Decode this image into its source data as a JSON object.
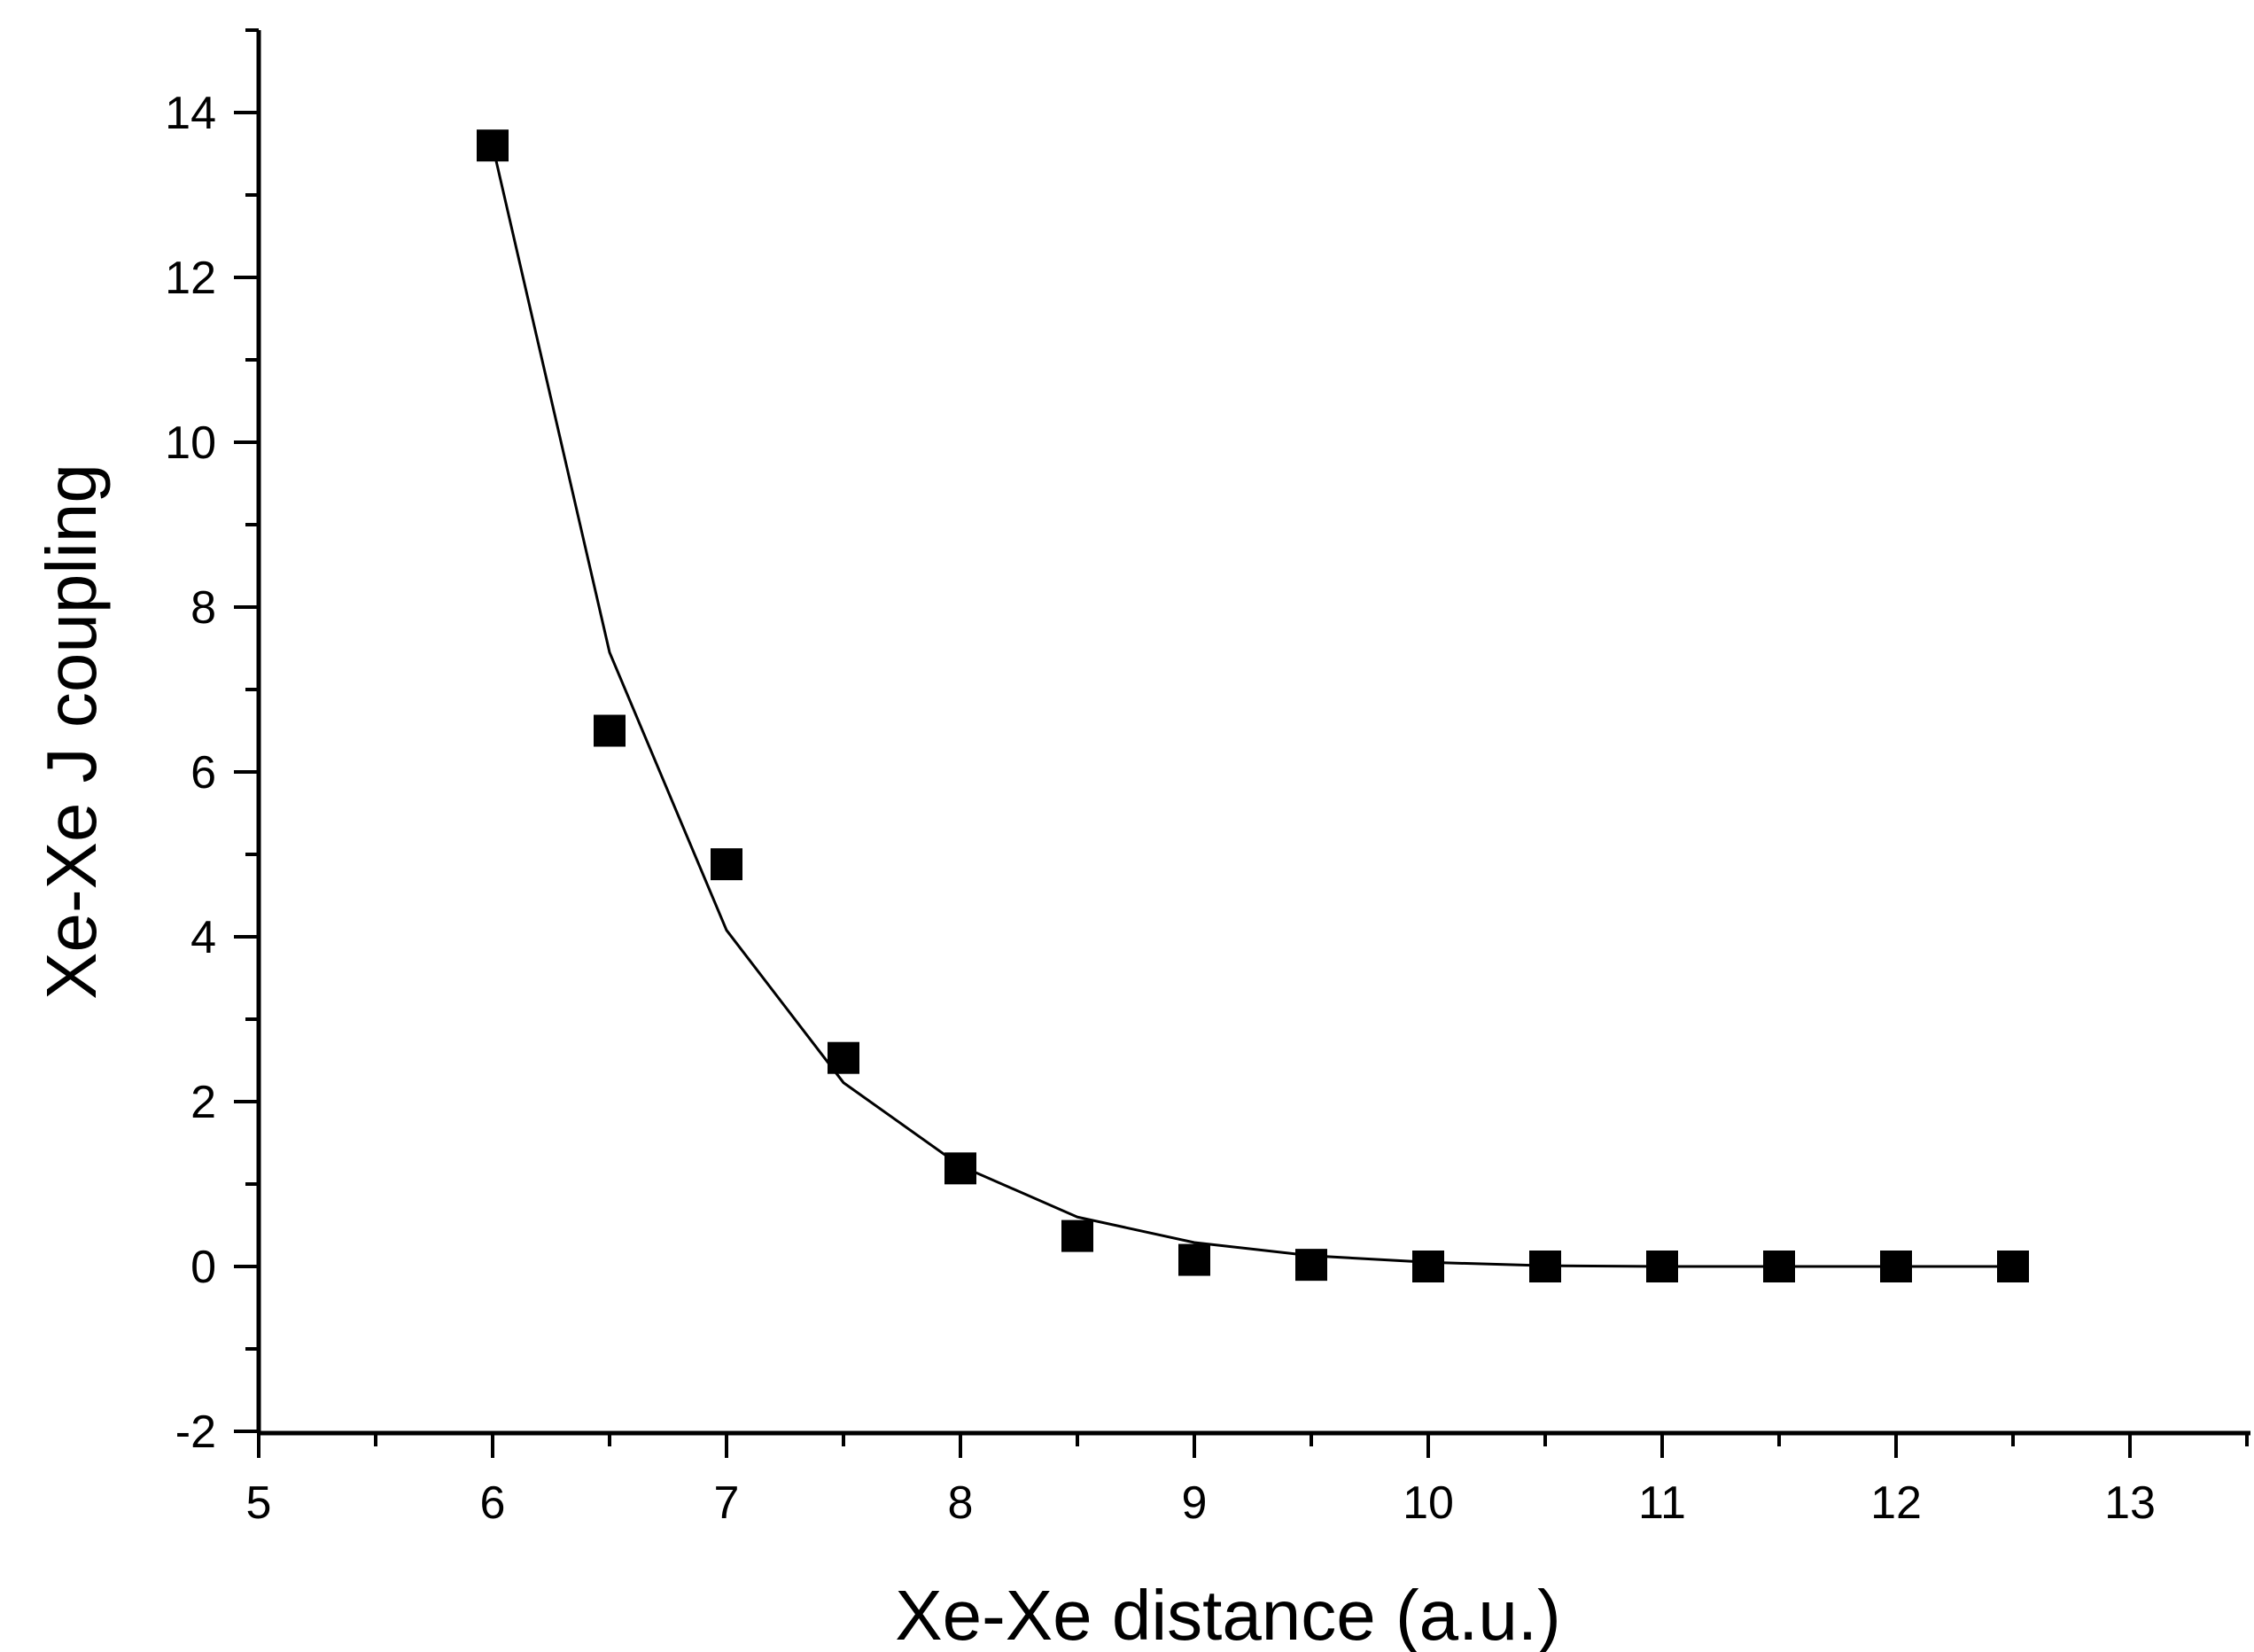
{
  "chart_data": {
    "type": "scatter",
    "title": "",
    "xlabel": "Xe-Xe distance (a.u.)",
    "ylabel": "Xe-Xe J coupling",
    "xlim": [
      5,
      13.5
    ],
    "ylim": [
      -2,
      15
    ],
    "x_ticks": [
      5,
      6,
      7,
      8,
      9,
      10,
      11,
      12,
      13
    ],
    "y_ticks": [
      -2,
      0,
      2,
      4,
      6,
      8,
      10,
      12,
      14
    ],
    "x_tick_labels": [
      "5",
      "6",
      "7",
      "8",
      "9",
      "10",
      "11",
      "12",
      "13"
    ],
    "y_tick_labels": [
      "-2",
      "0",
      "2",
      "4",
      "6",
      "8",
      "10",
      "12",
      "14"
    ],
    "grid": false,
    "legend": "none",
    "series": [
      {
        "kind": "markers",
        "marker": "square",
        "color": "#000000",
        "x": [
          6,
          6.5,
          7,
          7.5,
          8,
          8.5,
          9,
          9.5,
          10,
          10.5,
          11,
          11.5,
          12,
          12.5
        ],
        "y": [
          13.6,
          6.5,
          4.88,
          2.53,
          1.19,
          0.37,
          0.08,
          0.02,
          0.0,
          0.0,
          0.0,
          0.0,
          0.0,
          0.0
        ]
      },
      {
        "kind": "line",
        "color": "#000000",
        "x": [
          6,
          6.5,
          7,
          7.5,
          8,
          8.5,
          9,
          9.5,
          10,
          10.5,
          11,
          11.5,
          12,
          12.5
        ],
        "y": [
          13.6,
          7.45,
          4.08,
          2.23,
          1.22,
          0.6,
          0.29,
          0.13,
          0.05,
          0.01,
          0.0,
          0.0,
          0.0,
          0.0
        ]
      }
    ]
  }
}
